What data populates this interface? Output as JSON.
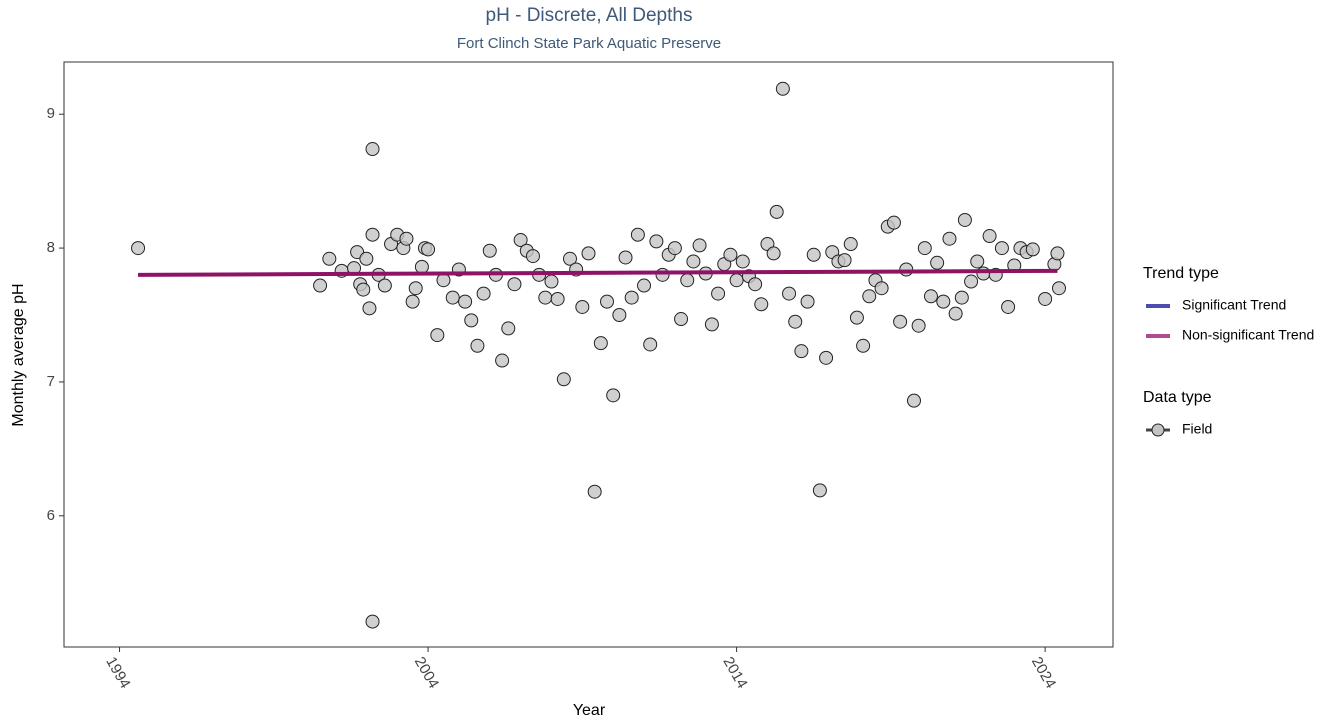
{
  "chart_data": {
    "type": "scatter",
    "title": "pH - Discrete, All Depths",
    "subtitle": "Fort Clinch State Park Aquatic Preserve",
    "x_label": "Year",
    "y_label": "Monthly average pH",
    "xlim": [
      1992.2,
      2026.2
    ],
    "ylim": [
      5.02,
      9.39
    ],
    "xticks": [
      1994,
      2004,
      2014,
      2024
    ],
    "yticks": [
      6,
      7,
      8,
      9
    ],
    "grid": false,
    "legend_position": "right",
    "legend_trend_title": "Trend type",
    "legend_data_title": "Data type",
    "series": [
      {
        "name": "Field",
        "color": "#c4c4c4",
        "x": [
          1994.6,
          2000.5,
          2000.8,
          2001.2,
          2001.6,
          2001.7,
          2001.8,
          2001.9,
          2002.0,
          2002.1,
          2002.2,
          2002.2,
          2002.2,
          2002.4,
          2002.6,
          2002.8,
          2003.0,
          2003.2,
          2003.3,
          2003.5,
          2003.6,
          2003.8,
          2003.9,
          2004.0,
          2004.3,
          2004.5,
          2004.8,
          2005.0,
          2005.2,
          2005.4,
          2005.6,
          2005.8,
          2006.0,
          2006.2,
          2006.4,
          2006.6,
          2006.8,
          2007.0,
          2007.2,
          2007.4,
          2007.6,
          2007.8,
          2008.0,
          2008.2,
          2008.4,
          2008.6,
          2008.8,
          2009.0,
          2009.2,
          2009.4,
          2009.6,
          2009.8,
          2010.0,
          2010.2,
          2010.4,
          2010.6,
          2010.8,
          2011.0,
          2011.2,
          2011.4,
          2011.6,
          2011.8,
          2012.0,
          2012.2,
          2012.4,
          2012.6,
          2012.8,
          2013.0,
          2013.2,
          2013.4,
          2013.6,
          2013.8,
          2014.0,
          2014.2,
          2014.4,
          2014.6,
          2014.8,
          2015.0,
          2015.2,
          2015.3,
          2015.5,
          2015.7,
          2015.9,
          2016.1,
          2016.3,
          2016.5,
          2016.7,
          2016.9,
          2017.1,
          2017.3,
          2017.5,
          2017.7,
          2017.9,
          2018.1,
          2018.3,
          2018.5,
          2018.7,
          2018.9,
          2019.1,
          2019.3,
          2019.5,
          2019.75,
          2019.9,
          2020.1,
          2020.3,
          2020.5,
          2020.7,
          2020.9,
          2021.1,
          2021.3,
          2021.4,
          2021.6,
          2021.8,
          2022.0,
          2022.2,
          2022.4,
          2022.6,
          2022.8,
          2023.0,
          2023.2,
          2023.4,
          2023.6,
          2024.0,
          2024.3,
          2024.4,
          2024.45
        ],
        "values": [
          8.0,
          7.72,
          7.92,
          7.83,
          7.85,
          7.97,
          7.73,
          7.69,
          7.92,
          7.55,
          8.1,
          8.74,
          5.21,
          7.8,
          7.72,
          8.03,
          8.1,
          8.0,
          8.07,
          7.6,
          7.7,
          7.86,
          8.0,
          7.99,
          7.35,
          7.76,
          7.63,
          7.84,
          7.6,
          7.46,
          7.27,
          7.66,
          7.98,
          7.8,
          7.16,
          7.4,
          7.73,
          8.06,
          7.98,
          7.94,
          7.8,
          7.63,
          7.75,
          7.62,
          7.02,
          7.92,
          7.84,
          7.56,
          7.96,
          6.18,
          7.29,
          7.6,
          6.9,
          7.5,
          7.93,
          7.63,
          8.1,
          7.72,
          7.28,
          8.05,
          7.8,
          7.95,
          8.0,
          7.47,
          7.76,
          7.9,
          8.02,
          7.81,
          7.43,
          7.66,
          7.88,
          7.95,
          7.76,
          7.9,
          7.79,
          7.73,
          7.58,
          8.03,
          7.96,
          8.27,
          9.19,
          7.66,
          7.45,
          7.23,
          7.6,
          7.95,
          6.19,
          7.18,
          7.97,
          7.9,
          7.91,
          8.03,
          7.48,
          7.27,
          7.64,
          7.76,
          7.7,
          8.16,
          8.19,
          7.45,
          7.84,
          6.86,
          7.42,
          8.0,
          7.64,
          7.89,
          7.6,
          8.07,
          7.51,
          7.63,
          8.21,
          7.75,
          7.9,
          7.81,
          8.09,
          7.8,
          8.0,
          7.56,
          7.87,
          8.0,
          7.97,
          7.99,
          7.62,
          7.88,
          7.96,
          7.7
        ]
      }
    ],
    "trend": {
      "name": "Non-significant Trend",
      "color": "#8e1266",
      "x": [
        1994.6,
        2024.4
      ],
      "values": [
        7.8,
        7.83
      ]
    },
    "trend_legend": [
      {
        "name": "Significant Trend",
        "color": "#4d4dae"
      },
      {
        "name": "Non-significant Trend",
        "color": "#b04a92"
      }
    ]
  }
}
